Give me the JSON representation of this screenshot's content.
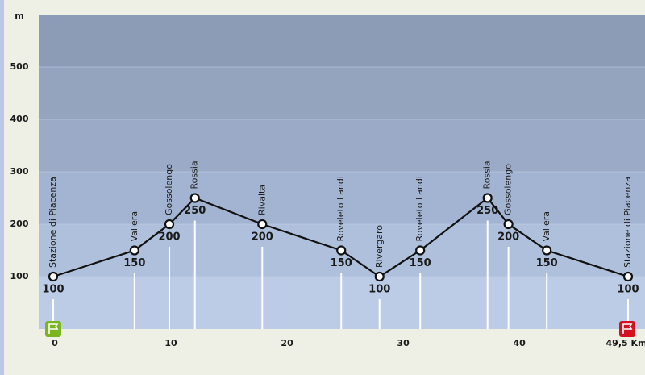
{
  "chart_data": {
    "type": "line",
    "y_label": "m",
    "x": [
      0,
      7.0,
      10.0,
      12.2,
      18.0,
      24.8,
      28.1,
      31.6,
      37.4,
      39.2,
      42.5,
      49.5
    ],
    "labels": [
      "Stazione di Piacenza",
      "Vallera",
      "Gossolengo",
      "Rossia",
      "Rivalta",
      "Roveleto Landi",
      "Rivergaro",
      "Roveleto Landi",
      "Rossia",
      "Gossolengo",
      "Vallera",
      "Stazione di Piacenza"
    ],
    "values": [
      100,
      150,
      200,
      250,
      200,
      150,
      100,
      150,
      250,
      200,
      150,
      100
    ],
    "color": "#111111",
    "xlim": [
      0,
      49.5
    ],
    "ylim": [
      0,
      600
    ],
    "xticks": [
      0,
      10,
      20,
      30,
      40,
      {
        "value": 49.5,
        "label": "49,5 Km"
      }
    ],
    "yticks": [
      100,
      200,
      300,
      400,
      500
    ]
  }
}
